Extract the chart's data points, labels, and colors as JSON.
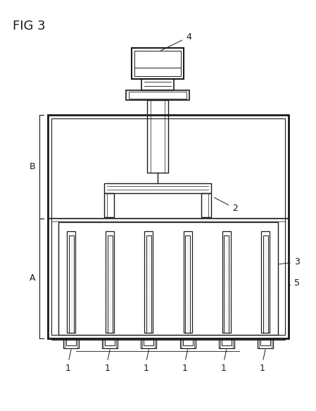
{
  "title": "FIG 3",
  "bg_color": "#ffffff",
  "lc": "#1a1a1a",
  "label_A": "A",
  "label_B": "B",
  "label_1": "1",
  "label_2": "2",
  "label_3": "3",
  "label_4": "4",
  "label_5": "5",
  "num_pins": 6
}
